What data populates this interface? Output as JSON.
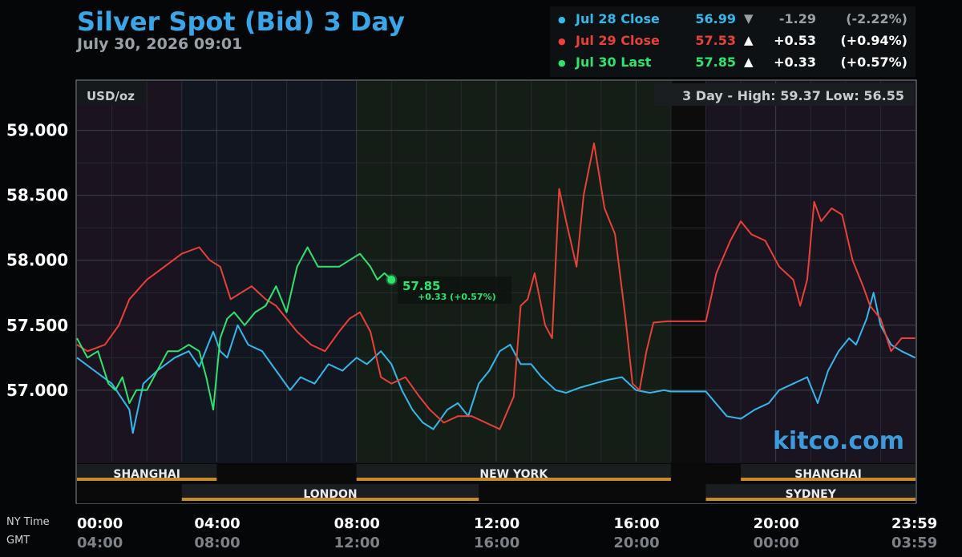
{
  "header": {
    "title": "Silver Spot (Bid) 3 Day",
    "subtitle": "July 30, 2026 09:01"
  },
  "legend": [
    {
      "label": "Jul 28 Close",
      "value": "56.99",
      "arrow": "▼",
      "change": "-1.29",
      "pct": "(-2.22%)",
      "color": "#35b8ea",
      "muted": true
    },
    {
      "label": "Jul 29 Close",
      "value": "57.53",
      "arrow": "▲",
      "change": "+0.53",
      "pct": "(+0.94%)",
      "color": "#e8413a",
      "muted": false
    },
    {
      "label": "Jul 30 Last",
      "value": "57.85",
      "arrow": "▲",
      "change": "+0.33",
      "pct": "(+0.57%)",
      "color": "#2fe36f",
      "muted": false
    }
  ],
  "chart": {
    "unit_label": "USD/oz",
    "range_text": "3 Day - High: 59.37  Low: 56.55",
    "watermark": "kitco.com",
    "callout_value": "57.85",
    "callout_change": "+0.33 (+0.57%)",
    "axis_label_ny": "NY Time",
    "axis_label_gmt": "GMT",
    "markets_top": [
      {
        "name": "SHANGHAI",
        "start_hr": 0,
        "end_hr": 4
      },
      {
        "name": "NEW YORK",
        "start_hr": 8,
        "end_hr": 17
      },
      {
        "name": "SHANGHAI",
        "start_hr": 19,
        "end_hr": 24
      }
    ],
    "markets_bottom": [
      {
        "name": "LONDON",
        "start_hr": 3,
        "end_hr": 11.5
      },
      {
        "name": "SYDNEY",
        "start_hr": 18,
        "end_hr": 24
      }
    ],
    "colors": {
      "line_jul28": "#35b8ea",
      "line_jul29": "#e8413a",
      "line_jul30": "#2fe36f",
      "market_bar": "#c98a2a",
      "title": "#3aa6e8"
    }
  },
  "chart_data": {
    "type": "line",
    "xlabel": "",
    "ylabel": "USD/oz",
    "xlim": [
      0,
      24
    ],
    "ylim": [
      56.45,
      59.38
    ],
    "yticks": [
      59.0,
      58.5,
      58.0,
      57.5,
      57.0
    ],
    "ytick_labels": [
      "59.000",
      "58.500",
      "58.000",
      "57.500",
      "57.000"
    ],
    "xticks": [
      0,
      4,
      8,
      12,
      16,
      20,
      24
    ],
    "xtick_labels_ny": [
      "00:00",
      "04:00",
      "08:00",
      "12:00",
      "16:00",
      "20:00",
      "23:59"
    ],
    "xtick_labels_gmt": [
      "04:00",
      "08:00",
      "12:00",
      "16:00",
      "20:00",
      "00:00",
      "03:59"
    ],
    "grid": true,
    "legend_position": "top-right",
    "series": [
      {
        "name": "Jul 28 Close",
        "x": [
          0,
          0.5,
          1,
          1.5,
          1.6,
          1.9,
          2.3,
          2.8,
          3.2,
          3.5,
          3.9,
          4.1,
          4.3,
          4.6,
          4.9,
          5.3,
          5.7,
          6.1,
          6.4,
          6.8,
          7.2,
          7.6,
          8.0,
          8.3,
          8.7,
          9.0,
          9.3,
          9.6,
          9.9,
          10.2,
          10.6,
          10.9,
          11.2,
          11.5,
          11.8,
          12.1,
          12.4,
          12.7,
          13.0,
          13.3,
          13.7,
          14.0,
          14.4,
          14.8,
          15.2,
          15.6,
          16.0,
          16.4,
          16.8,
          17.0,
          17.2,
          18.0,
          18.6,
          19.0,
          19.4,
          19.8,
          20.1,
          20.5,
          20.9,
          21.2,
          21.5,
          21.8,
          22.1,
          22.3,
          22.6,
          22.8,
          23.0,
          23.3,
          23.6,
          23.99
        ],
        "y": [
          57.25,
          57.15,
          57.05,
          56.85,
          56.67,
          57.05,
          57.15,
          57.25,
          57.3,
          57.18,
          57.45,
          57.3,
          57.25,
          57.5,
          57.35,
          57.3,
          57.15,
          57.0,
          57.1,
          57.05,
          57.2,
          57.15,
          57.25,
          57.2,
          57.3,
          57.2,
          57.0,
          56.85,
          56.75,
          56.7,
          56.85,
          56.9,
          56.8,
          57.05,
          57.15,
          57.3,
          57.35,
          57.2,
          57.2,
          57.1,
          57.0,
          56.98,
          57.02,
          57.05,
          57.08,
          57.1,
          57.0,
          56.98,
          57.0,
          56.99,
          56.99,
          56.99,
          56.8,
          56.78,
          56.85,
          56.9,
          57.0,
          57.05,
          57.1,
          56.9,
          57.15,
          57.3,
          57.4,
          57.35,
          57.55,
          57.75,
          57.5,
          57.35,
          57.3,
          57.25
        ]
      },
      {
        "name": "Jul 29 Close",
        "x": [
          0,
          0.3,
          0.8,
          1.2,
          1.5,
          2.0,
          2.5,
          3.0,
          3.5,
          3.8,
          4.1,
          4.4,
          4.7,
          5.0,
          5.4,
          5.7,
          6.0,
          6.3,
          6.7,
          7.1,
          7.5,
          7.8,
          8.1,
          8.4,
          8.7,
          9.0,
          9.4,
          9.8,
          10.1,
          10.5,
          10.9,
          11.3,
          11.7,
          12.1,
          12.5,
          12.7,
          12.9,
          13.1,
          13.4,
          13.6,
          13.8,
          14.0,
          14.3,
          14.5,
          14.8,
          15.1,
          15.4,
          15.7,
          15.9,
          16.1,
          16.3,
          16.5,
          16.9,
          17.2,
          18.0,
          18.3,
          18.7,
          19.0,
          19.3,
          19.7,
          20.1,
          20.5,
          20.7,
          20.9,
          21.1,
          21.3,
          21.6,
          21.9,
          22.2,
          22.5,
          22.7,
          23.0,
          23.3,
          23.6,
          23.99
        ],
        "y": [
          57.35,
          57.3,
          57.35,
          57.5,
          57.7,
          57.85,
          57.95,
          58.05,
          58.1,
          58.0,
          57.95,
          57.7,
          57.75,
          57.8,
          57.7,
          57.65,
          57.55,
          57.45,
          57.35,
          57.3,
          57.45,
          57.55,
          57.6,
          57.45,
          57.1,
          57.05,
          57.1,
          56.95,
          56.85,
          56.75,
          56.8,
          56.8,
          56.75,
          56.7,
          56.95,
          57.65,
          57.7,
          57.9,
          57.5,
          57.4,
          58.55,
          58.3,
          57.95,
          58.5,
          58.9,
          58.4,
          58.2,
          57.55,
          57.05,
          57.0,
          57.3,
          57.52,
          57.53,
          57.53,
          57.53,
          57.9,
          58.15,
          58.3,
          58.2,
          58.15,
          57.95,
          57.85,
          57.65,
          57.85,
          58.45,
          58.3,
          58.4,
          58.35,
          58.0,
          57.8,
          57.65,
          57.55,
          57.3,
          57.4,
          57.4
        ]
      },
      {
        "name": "Jul 30 Last",
        "x": [
          0,
          0.3,
          0.6,
          0.9,
          1.1,
          1.3,
          1.5,
          1.7,
          2.0,
          2.3,
          2.6,
          2.9,
          3.2,
          3.5,
          3.7,
          3.9,
          4.1,
          4.3,
          4.5,
          4.8,
          5.1,
          5.4,
          5.7,
          6.0,
          6.3,
          6.6,
          6.9,
          7.2,
          7.5,
          7.8,
          8.1,
          8.4,
          8.6,
          8.8,
          9.0
        ],
        "y": [
          57.4,
          57.25,
          57.3,
          57.05,
          57.0,
          57.1,
          56.9,
          57.0,
          57.0,
          57.15,
          57.3,
          57.3,
          57.35,
          57.3,
          57.1,
          56.85,
          57.4,
          57.55,
          57.6,
          57.5,
          57.6,
          57.65,
          57.8,
          57.6,
          57.95,
          58.1,
          57.95,
          57.95,
          57.95,
          58.0,
          58.05,
          57.95,
          57.85,
          57.9,
          57.85
        ]
      }
    ]
  }
}
